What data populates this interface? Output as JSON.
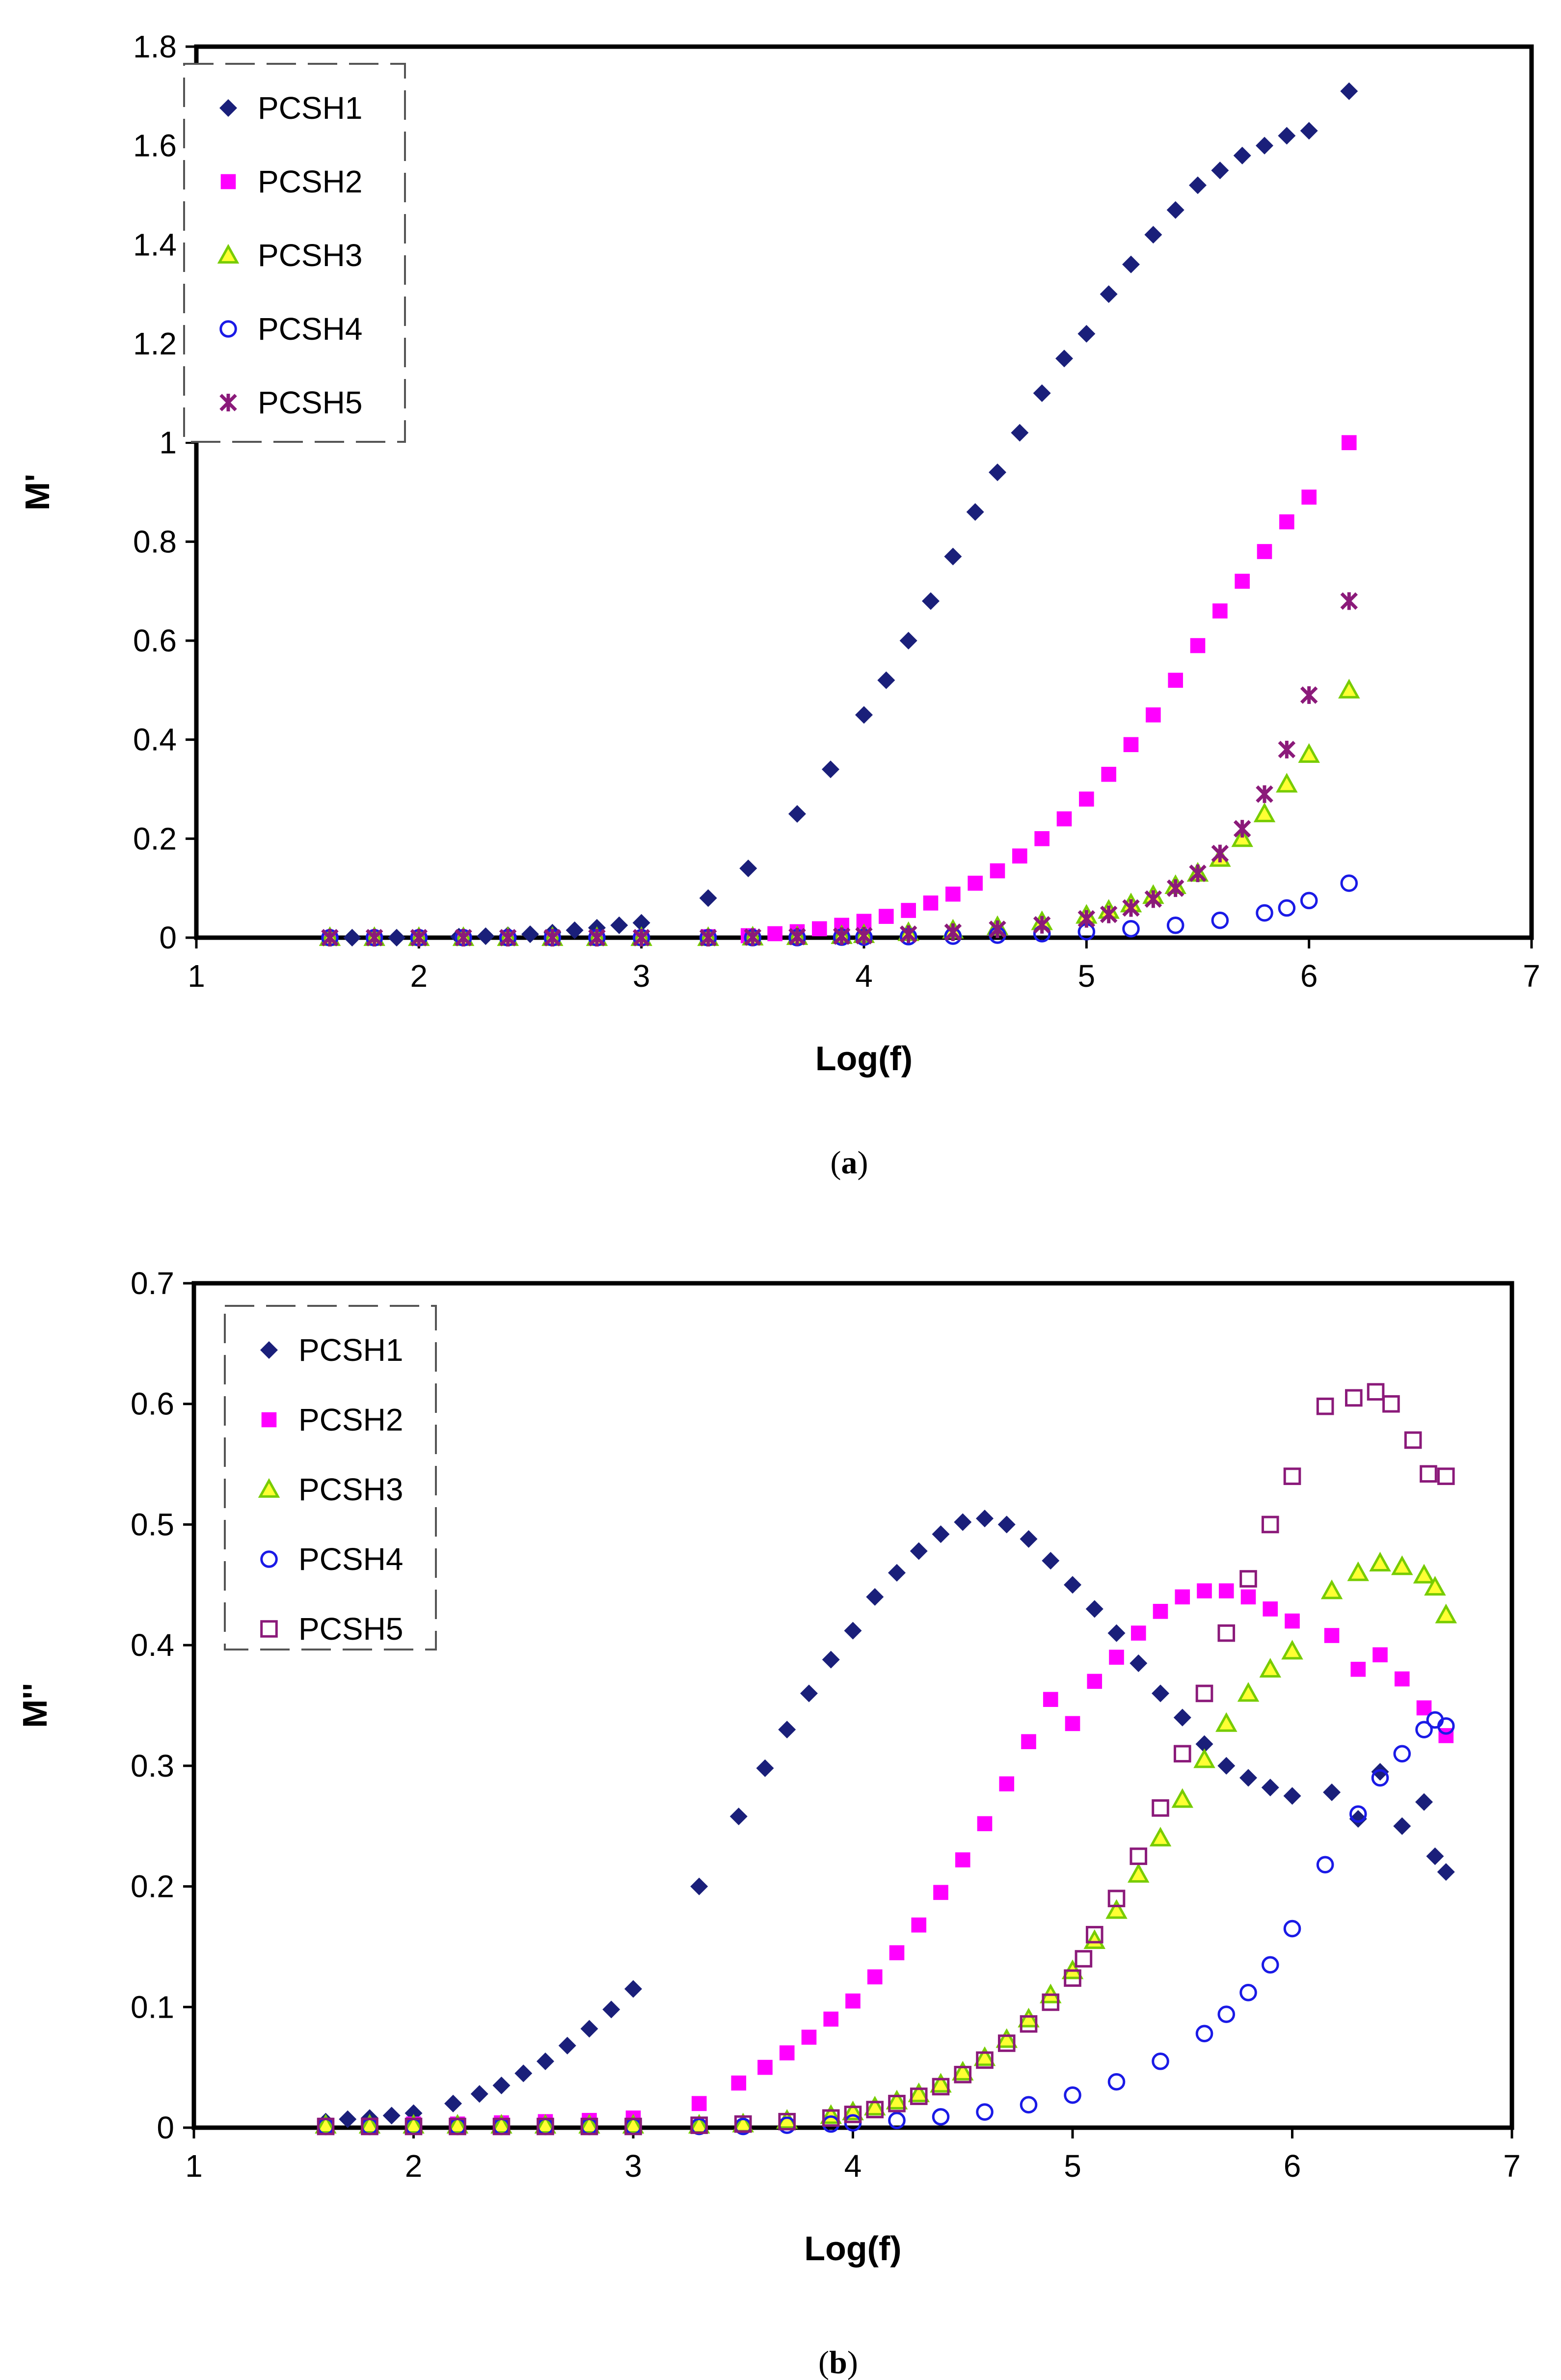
{
  "chart_data": [
    {
      "type": "scatter",
      "caption_letter": "a",
      "xlabel": "Log(f)",
      "ylabel": "M'",
      "xlim": [
        1,
        7
      ],
      "ylim": [
        0,
        1.8
      ],
      "xticks": [
        "1",
        "2",
        "3",
        "4",
        "5",
        "6",
        "7"
      ],
      "yticks": [
        "0",
        "0.2",
        "0.4",
        "0.6",
        "0.8",
        "1",
        "1.2",
        "1.4",
        "1.6",
        "1.8"
      ],
      "legend_position": "top-left",
      "series": [
        {
          "name": "PCSH1",
          "marker": "diamond",
          "color": "#1a1f7a",
          "x": [
            1.6,
            1.7,
            1.8,
            1.9,
            2.0,
            2.18,
            2.3,
            2.4,
            2.5,
            2.6,
            2.7,
            2.8,
            2.9,
            3.0,
            3.3,
            3.48,
            3.7,
            3.85,
            4.0,
            4.1,
            4.2,
            4.3,
            4.4,
            4.5,
            4.6,
            4.7,
            4.8,
            4.9,
            5.0,
            5.1,
            5.2,
            5.3,
            5.4,
            5.5,
            5.6,
            5.7,
            5.8,
            5.9,
            6.0,
            6.18
          ],
          "y": [
            0.0,
            0.0,
            0.0,
            0.0,
            0.0,
            0.002,
            0.003,
            0.005,
            0.007,
            0.01,
            0.015,
            0.02,
            0.025,
            0.03,
            0.08,
            0.14,
            0.25,
            0.34,
            0.45,
            0.52,
            0.6,
            0.68,
            0.77,
            0.86,
            0.94,
            1.02,
            1.1,
            1.17,
            1.22,
            1.3,
            1.36,
            1.42,
            1.47,
            1.52,
            1.55,
            1.58,
            1.6,
            1.62,
            1.63,
            1.71
          ]
        },
        {
          "name": "PCSH2",
          "marker": "square",
          "color": "#ff00ff",
          "x": [
            1.6,
            1.8,
            2.0,
            2.2,
            2.4,
            2.6,
            2.8,
            3.0,
            3.3,
            3.48,
            3.6,
            3.7,
            3.8,
            3.9,
            4.0,
            4.1,
            4.2,
            4.3,
            4.4,
            4.5,
            4.6,
            4.7,
            4.8,
            4.9,
            5.0,
            5.1,
            5.2,
            5.3,
            5.4,
            5.5,
            5.6,
            5.7,
            5.8,
            5.9,
            6.0,
            6.18
          ],
          "y": [
            0.0,
            0.0,
            0.0,
            0.0,
            0.0,
            0.0,
            0.0,
            0.0,
            0.002,
            0.004,
            0.008,
            0.012,
            0.018,
            0.025,
            0.033,
            0.043,
            0.055,
            0.07,
            0.088,
            0.11,
            0.135,
            0.165,
            0.2,
            0.24,
            0.28,
            0.33,
            0.39,
            0.45,
            0.52,
            0.59,
            0.66,
            0.72,
            0.78,
            0.84,
            0.89,
            1.0
          ]
        },
        {
          "name": "PCSH3",
          "marker": "triangle",
          "color": "#77cc00",
          "x": [
            1.6,
            1.8,
            2.0,
            2.2,
            2.4,
            2.6,
            2.8,
            3.0,
            3.3,
            3.5,
            3.7,
            3.9,
            4.0,
            4.2,
            4.4,
            4.6,
            4.8,
            5.0,
            5.1,
            5.2,
            5.3,
            5.4,
            5.5,
            5.6,
            5.7,
            5.8,
            5.9,
            6.0,
            6.18
          ],
          "y": [
            0.0,
            0.0,
            0.0,
            0.0,
            0.0,
            0.0,
            0.0,
            0.0,
            0.0,
            0.001,
            0.002,
            0.004,
            0.006,
            0.01,
            0.015,
            0.022,
            0.032,
            0.045,
            0.055,
            0.068,
            0.085,
            0.105,
            0.13,
            0.16,
            0.2,
            0.25,
            0.31,
            0.37,
            0.5
          ]
        },
        {
          "name": "PCSH4",
          "marker": "circle",
          "color": "#1a1ae6",
          "x": [
            1.6,
            1.8,
            2.0,
            2.2,
            2.4,
            2.6,
            2.8,
            3.0,
            3.3,
            3.5,
            3.7,
            3.9,
            4.0,
            4.2,
            4.4,
            4.6,
            4.8,
            5.0,
            5.2,
            5.4,
            5.6,
            5.8,
            5.9,
            6.0,
            6.18
          ],
          "y": [
            0.0,
            0.0,
            0.0,
            0.0,
            0.0,
            0.0,
            0.0,
            0.0,
            0.0,
            0.0,
            0.0,
            0.001,
            0.001,
            0.002,
            0.003,
            0.005,
            0.008,
            0.012,
            0.018,
            0.025,
            0.035,
            0.05,
            0.06,
            0.075,
            0.11
          ]
        },
        {
          "name": "PCSH5",
          "marker": "asterisk",
          "color": "#8b1a7a",
          "x": [
            1.6,
            1.8,
            2.0,
            2.2,
            2.4,
            2.6,
            2.8,
            3.0,
            3.3,
            3.5,
            3.7,
            3.9,
            4.0,
            4.2,
            4.4,
            4.6,
            4.8,
            5.0,
            5.1,
            5.2,
            5.3,
            5.4,
            5.5,
            5.6,
            5.7,
            5.8,
            5.9,
            6.0,
            6.18
          ],
          "y": [
            0.0,
            0.0,
            0.0,
            0.0,
            0.0,
            0.0,
            0.0,
            0.0,
            0.0,
            0.001,
            0.002,
            0.003,
            0.004,
            0.007,
            0.011,
            0.017,
            0.026,
            0.038,
            0.047,
            0.06,
            0.078,
            0.1,
            0.13,
            0.17,
            0.22,
            0.29,
            0.38,
            0.49,
            0.68
          ]
        }
      ]
    },
    {
      "type": "scatter",
      "caption_letter": "b",
      "xlabel": "Log(f)",
      "ylabel": "M''",
      "xlim": [
        1,
        7
      ],
      "ylim": [
        0,
        0.7
      ],
      "xticks": [
        "1",
        "2",
        "3",
        "4",
        "5",
        "6",
        "7"
      ],
      "yticks": [
        "0",
        "0.1",
        "0.2",
        "0.3",
        "0.4",
        "0.5",
        "0.6",
        "0.7"
      ],
      "legend_position": "top-left",
      "series": [
        {
          "name": "PCSH1",
          "marker": "diamond",
          "color": "#1a1f7a",
          "x": [
            1.6,
            1.7,
            1.8,
            1.9,
            2.0,
            2.18,
            2.3,
            2.4,
            2.5,
            2.6,
            2.7,
            2.8,
            2.9,
            3.0,
            3.3,
            3.48,
            3.6,
            3.7,
            3.8,
            3.9,
            4.0,
            4.1,
            4.2,
            4.3,
            4.4,
            4.5,
            4.6,
            4.7,
            4.8,
            4.9,
            5.0,
            5.1,
            5.2,
            5.3,
            5.4,
            5.5,
            5.6,
            5.7,
            5.8,
            5.9,
            6.0,
            6.18,
            6.3,
            6.4,
            6.5,
            6.6,
            6.65,
            6.7
          ],
          "y": [
            0.005,
            0.007,
            0.008,
            0.01,
            0.012,
            0.02,
            0.028,
            0.035,
            0.045,
            0.055,
            0.068,
            0.082,
            0.098,
            0.115,
            0.2,
            0.258,
            0.298,
            0.33,
            0.36,
            0.388,
            0.412,
            0.44,
            0.46,
            0.478,
            0.492,
            0.502,
            0.505,
            0.5,
            0.488,
            0.47,
            0.45,
            0.43,
            0.41,
            0.385,
            0.36,
            0.34,
            0.318,
            0.3,
            0.29,
            0.282,
            0.275,
            0.278,
            0.256,
            0.295,
            0.25,
            0.27,
            0.225,
            0.212
          ]
        },
        {
          "name": "PCSH2",
          "marker": "square",
          "color": "#ff00ff",
          "x": [
            1.6,
            1.8,
            2.0,
            2.2,
            2.4,
            2.6,
            2.8,
            3.0,
            3.3,
            3.48,
            3.6,
            3.7,
            3.8,
            3.9,
            4.0,
            4.1,
            4.2,
            4.3,
            4.4,
            4.5,
            4.6,
            4.7,
            4.8,
            4.9,
            5.0,
            5.1,
            5.2,
            5.3,
            5.4,
            5.5,
            5.6,
            5.7,
            5.8,
            5.9,
            6.0,
            6.18,
            6.3,
            6.4,
            6.5,
            6.6,
            6.7
          ],
          "y": [
            0.002,
            0.002,
            0.003,
            0.003,
            0.004,
            0.005,
            0.006,
            0.008,
            0.02,
            0.037,
            0.05,
            0.062,
            0.075,
            0.09,
            0.105,
            0.125,
            0.145,
            0.168,
            0.195,
            0.222,
            0.252,
            0.285,
            0.32,
            0.355,
            0.335,
            0.37,
            0.39,
            0.41,
            0.428,
            0.44,
            0.445,
            0.445,
            0.44,
            0.43,
            0.42,
            0.408,
            0.38,
            0.392,
            0.372,
            0.348,
            0.325
          ]
        },
        {
          "name": "PCSH3",
          "marker": "triangle",
          "color": "#77cc00",
          "x": [
            1.6,
            1.8,
            2.0,
            2.2,
            2.4,
            2.6,
            2.8,
            3.0,
            3.3,
            3.5,
            3.7,
            3.9,
            4.0,
            4.1,
            4.2,
            4.3,
            4.4,
            4.5,
            4.6,
            4.7,
            4.8,
            4.9,
            5.0,
            5.1,
            5.2,
            5.3,
            5.4,
            5.5,
            5.6,
            5.7,
            5.8,
            5.9,
            6.0,
            6.18,
            6.3,
            6.4,
            6.5,
            6.6,
            6.65,
            6.7
          ],
          "y": [
            0.002,
            0.002,
            0.002,
            0.002,
            0.002,
            0.002,
            0.002,
            0.002,
            0.002,
            0.003,
            0.006,
            0.01,
            0.013,
            0.017,
            0.022,
            0.028,
            0.036,
            0.046,
            0.058,
            0.073,
            0.09,
            0.11,
            0.13,
            0.155,
            0.18,
            0.21,
            0.24,
            0.272,
            0.305,
            0.335,
            0.36,
            0.38,
            0.395,
            0.445,
            0.46,
            0.468,
            0.465,
            0.458,
            0.448,
            0.425
          ]
        },
        {
          "name": "PCSH4",
          "marker": "circle",
          "color": "#1a1ae6",
          "x": [
            1.6,
            1.8,
            2.0,
            2.2,
            2.4,
            2.6,
            2.8,
            3.0,
            3.3,
            3.5,
            3.7,
            3.9,
            4.0,
            4.2,
            4.4,
            4.6,
            4.8,
            5.0,
            5.2,
            5.4,
            5.6,
            5.7,
            5.8,
            5.9,
            6.0,
            6.15,
            6.3,
            6.4,
            6.5,
            6.6,
            6.65,
            6.7
          ],
          "y": [
            0.001,
            0.001,
            0.001,
            0.001,
            0.001,
            0.001,
            0.001,
            0.001,
            0.001,
            0.001,
            0.002,
            0.003,
            0.004,
            0.006,
            0.009,
            0.013,
            0.019,
            0.027,
            0.038,
            0.055,
            0.078,
            0.094,
            0.112,
            0.135,
            0.165,
            0.218,
            0.26,
            0.29,
            0.31,
            0.33,
            0.338,
            0.333
          ]
        },
        {
          "name": "PCSH5",
          "marker": "open-square",
          "color": "#8b1a7a",
          "x": [
            1.6,
            1.8,
            2.0,
            2.2,
            2.4,
            2.6,
            2.8,
            3.0,
            3.3,
            3.5,
            3.7,
            3.9,
            4.0,
            4.1,
            4.2,
            4.3,
            4.4,
            4.5,
            4.6,
            4.7,
            4.8,
            4.9,
            5.0,
            5.05,
            5.1,
            5.2,
            5.3,
            5.4,
            5.5,
            5.6,
            5.7,
            5.8,
            5.9,
            6.0,
            6.15,
            6.28,
            6.38,
            6.45,
            6.55,
            6.62,
            6.7
          ],
          "y": [
            0.001,
            0.001,
            0.001,
            0.001,
            0.001,
            0.001,
            0.001,
            0.001,
            0.002,
            0.003,
            0.005,
            0.008,
            0.011,
            0.015,
            0.02,
            0.026,
            0.034,
            0.044,
            0.056,
            0.07,
            0.086,
            0.104,
            0.124,
            0.14,
            0.16,
            0.19,
            0.225,
            0.265,
            0.31,
            0.36,
            0.41,
            0.455,
            0.5,
            0.54,
            0.598,
            0.605,
            0.61,
            0.6,
            0.57,
            0.542,
            0.54
          ]
        }
      ]
    }
  ]
}
